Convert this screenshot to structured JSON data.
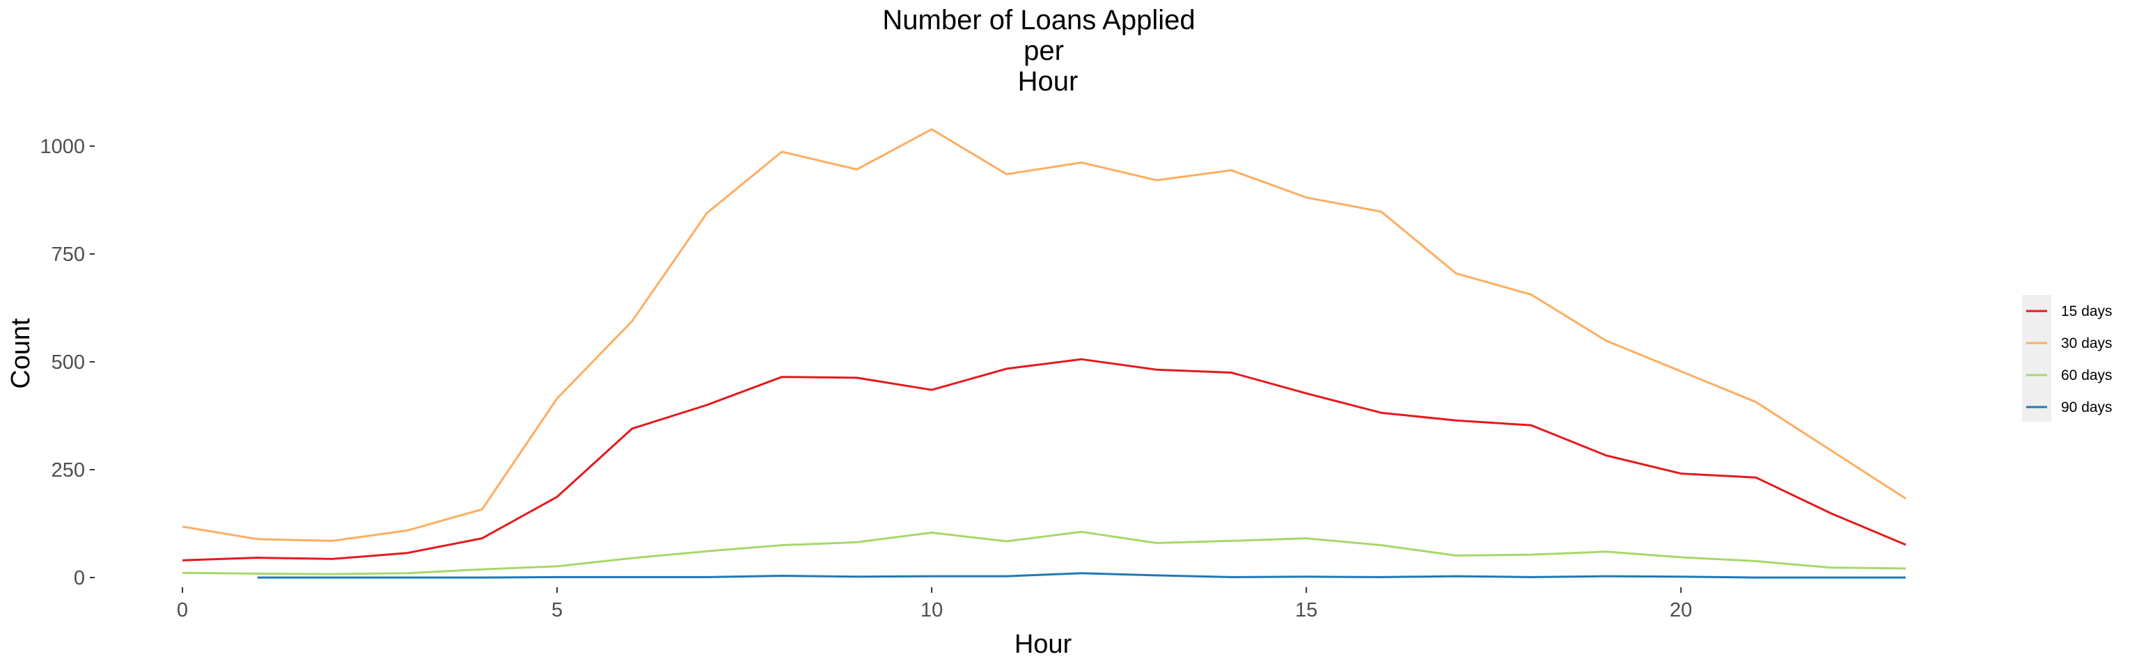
{
  "chart_data": {
    "type": "line",
    "title": [
      "Number of Loans Applied",
      "per",
      "Hour"
    ],
    "xlabel": "Hour",
    "ylabel": "Count",
    "xlim": [
      0,
      23
    ],
    "ylim": [
      0,
      1000
    ],
    "x_ticks": [
      "0",
      "5",
      "10",
      "15",
      "20"
    ],
    "y_ticks": [
      "0",
      "250",
      "500",
      "750",
      "1000"
    ],
    "grid": false,
    "legend_position": "right",
    "series": [
      {
        "name": "15 days",
        "color": "#e41a1c",
        "x": [
          0,
          1,
          2,
          3,
          4,
          5,
          6,
          7,
          8,
          9,
          10,
          11,
          12,
          13,
          14,
          15,
          16,
          17,
          18,
          19,
          20,
          21,
          22,
          23
        ],
        "values": [
          40,
          46,
          43,
          57,
          91,
          187,
          345,
          400,
          465,
          463,
          435,
          484,
          506,
          482,
          475,
          427,
          382,
          364,
          353,
          283,
          241,
          232,
          149,
          76
        ]
      },
      {
        "name": "30 days",
        "color": "#fdae61",
        "x": [
          0,
          1,
          2,
          3,
          4,
          5,
          6,
          7,
          8,
          9,
          10,
          11,
          12,
          13,
          14,
          15,
          16,
          17,
          18,
          19,
          20,
          21,
          22,
          23
        ],
        "values": [
          118,
          89,
          85,
          109,
          158,
          415,
          594,
          845,
          987,
          946,
          1039,
          935,
          962,
          921,
          944,
          881,
          848,
          705,
          656,
          549,
          478,
          407,
          295,
          183
        ]
      },
      {
        "name": "60 days",
        "color": "#a6d96a",
        "x": [
          0,
          1,
          2,
          3,
          4,
          5,
          6,
          7,
          8,
          9,
          10,
          11,
          12,
          13,
          14,
          15,
          16,
          17,
          18,
          19,
          20,
          21,
          22,
          23
        ],
        "values": [
          11,
          9,
          8,
          10,
          19,
          26,
          45,
          61,
          75,
          82,
          104,
          84,
          106,
          80,
          85,
          91,
          75,
          51,
          53,
          60,
          47,
          38,
          23,
          21
        ]
      },
      {
        "name": "90 days",
        "color": "#1f78b4",
        "x": [
          1,
          2,
          3,
          4,
          5,
          6,
          7,
          8,
          9,
          10,
          11,
          12,
          13,
          14,
          15,
          16,
          17,
          18,
          19,
          20,
          21,
          22,
          23
        ],
        "values": [
          0,
          0,
          0,
          0,
          1,
          1,
          1,
          4,
          2,
          3,
          3,
          10,
          5,
          1,
          2,
          1,
          3,
          1,
          3,
          2,
          0,
          0,
          0
        ]
      }
    ]
  }
}
